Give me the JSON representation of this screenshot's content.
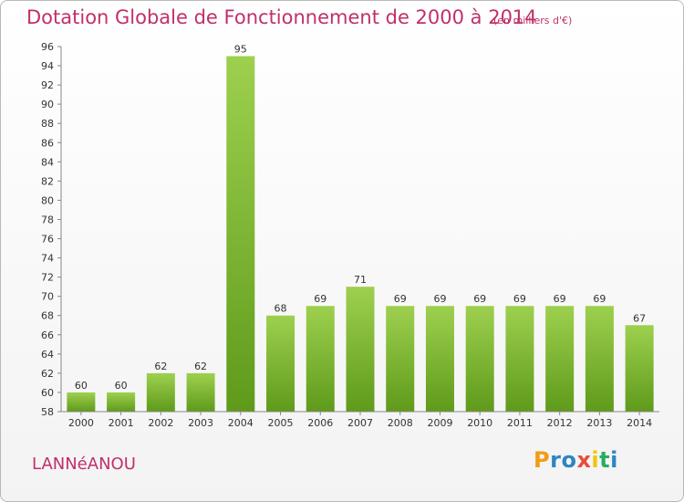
{
  "header": {
    "title": "Dotation Globale de Fonctionnement de 2000 à 2014",
    "subtitle": "(en milliers d'€)"
  },
  "footer": {
    "commune": "LANNéANOU",
    "logo_text": "Proxiti"
  },
  "colors": {
    "title": "#c0306a",
    "bar_light": "#9ed04f",
    "bar_dark": "#5f9a1a"
  },
  "chart_data": {
    "type": "bar",
    "title": "Dotation Globale de Fonctionnement de 2000 à 2014",
    "subtitle": "(en milliers d'€)",
    "xlabel": "",
    "ylabel": "",
    "categories": [
      "2000",
      "2001",
      "2002",
      "2003",
      "2004",
      "2005",
      "2006",
      "2007",
      "2008",
      "2009",
      "2010",
      "2011",
      "2012",
      "2013",
      "2014"
    ],
    "values": [
      60,
      60,
      62,
      62,
      95,
      68,
      69,
      71,
      69,
      69,
      69,
      69,
      69,
      69,
      67
    ],
    "ylim": [
      58,
      96
    ],
    "yticks": [
      58,
      60,
      62,
      64,
      66,
      68,
      70,
      72,
      74,
      76,
      78,
      80,
      82,
      84,
      86,
      88,
      90,
      92,
      94,
      96
    ],
    "grid": false,
    "legend": "none"
  }
}
